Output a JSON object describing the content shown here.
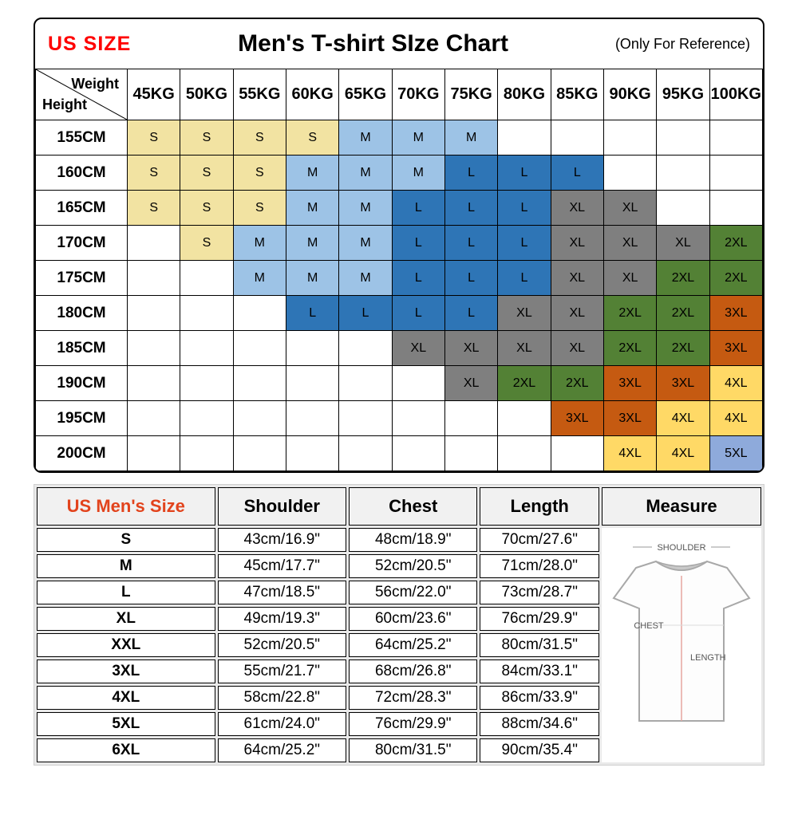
{
  "header": {
    "us_size": "US SIZE",
    "title": "Men's T-shirt SIze Chart",
    "reference": "(Only For Reference)"
  },
  "colors": {
    "s": "#F2E3A2",
    "m": "#9DC3E6",
    "l": "#2E75B6",
    "xl": "#7F7F7F",
    "2xl": "#538135",
    "3xl": "#C55A11",
    "4xl": "#FFD966",
    "5xl": "#8EAADB"
  },
  "size_matrix": {
    "corner": {
      "weight": "Weight",
      "height": "Height"
    },
    "weights": [
      "45KG",
      "50KG",
      "55KG",
      "60KG",
      "65KG",
      "70KG",
      "75KG",
      "80KG",
      "85KG",
      "90KG",
      "95KG",
      "100KG"
    ],
    "rows": [
      {
        "height": "155CM",
        "cells": [
          "S",
          "S",
          "S",
          "S",
          "M",
          "M",
          "M",
          "",
          "",
          "",
          "",
          ""
        ]
      },
      {
        "height": "160CM",
        "cells": [
          "S",
          "S",
          "S",
          "M",
          "M",
          "M",
          "L",
          "L",
          "L",
          "",
          "",
          ""
        ]
      },
      {
        "height": "165CM",
        "cells": [
          "S",
          "S",
          "S",
          "M",
          "M",
          "L",
          "L",
          "L",
          "XL",
          "XL",
          "",
          ""
        ]
      },
      {
        "height": "170CM",
        "cells": [
          "",
          "S",
          "M",
          "M",
          "M",
          "L",
          "L",
          "L",
          "XL",
          "XL",
          "XL",
          "2XL"
        ]
      },
      {
        "height": "175CM",
        "cells": [
          "",
          "",
          "M",
          "M",
          "M",
          "L",
          "L",
          "L",
          "XL",
          "XL",
          "2XL",
          "2XL"
        ]
      },
      {
        "height": "180CM",
        "cells": [
          "",
          "",
          "",
          "L",
          "L",
          "L",
          "L",
          "XL",
          "XL",
          "2XL",
          "2XL",
          "3XL"
        ]
      },
      {
        "height": "185CM",
        "cells": [
          "",
          "",
          "",
          "",
          "",
          "XL",
          "XL",
          "XL",
          "XL",
          "2XL",
          "2XL",
          "3XL"
        ]
      },
      {
        "height": "190CM",
        "cells": [
          "",
          "",
          "",
          "",
          "",
          "",
          "XL",
          "2XL",
          "2XL",
          "3XL",
          "3XL",
          "4XL"
        ]
      },
      {
        "height": "195CM",
        "cells": [
          "",
          "",
          "",
          "",
          "",
          "",
          "",
          "",
          "3XL",
          "3XL",
          "4XL",
          "4XL"
        ]
      },
      {
        "height": "200CM",
        "cells": [
          "",
          "",
          "",
          "",
          "",
          "",
          "",
          "",
          "",
          "4XL",
          "4XL",
          "5XL"
        ]
      }
    ]
  },
  "size_table": {
    "headers": [
      "US Men's Size",
      "Shoulder",
      "Chest",
      "Length",
      "Measure"
    ],
    "rows": [
      {
        "size": "S",
        "shoulder": "43cm/16.9\"",
        "chest": "48cm/18.9\"",
        "length": "70cm/27.6\""
      },
      {
        "size": "M",
        "shoulder": "45cm/17.7\"",
        "chest": "52cm/20.5\"",
        "length": "71cm/28.0\""
      },
      {
        "size": "L",
        "shoulder": "47cm/18.5\"",
        "chest": "56cm/22.0\"",
        "length": "73cm/28.7\""
      },
      {
        "size": "XL",
        "shoulder": "49cm/19.3\"",
        "chest": "60cm/23.6\"",
        "length": "76cm/29.9\""
      },
      {
        "size": "XXL",
        "shoulder": "52cm/20.5\"",
        "chest": "64cm/25.2\"",
        "length": "80cm/31.5\""
      },
      {
        "size": "3XL",
        "shoulder": "55cm/21.7\"",
        "chest": "68cm/26.8\"",
        "length": "84cm/33.1\""
      },
      {
        "size": "4XL",
        "shoulder": "58cm/22.8\"",
        "chest": "72cm/28.3\"",
        "length": "86cm/33.9\""
      },
      {
        "size": "5XL",
        "shoulder": "61cm/24.0\"",
        "chest": "76cm/29.9\"",
        "length": "88cm/34.6\""
      },
      {
        "size": "6XL",
        "shoulder": "64cm/25.2\"",
        "chest": "80cm/31.5\"",
        "length": "90cm/35.4\""
      }
    ]
  },
  "measure": {
    "shoulder_label": "SHOULDER",
    "chest_label": "CHEST",
    "length_label": "LENGTH"
  }
}
